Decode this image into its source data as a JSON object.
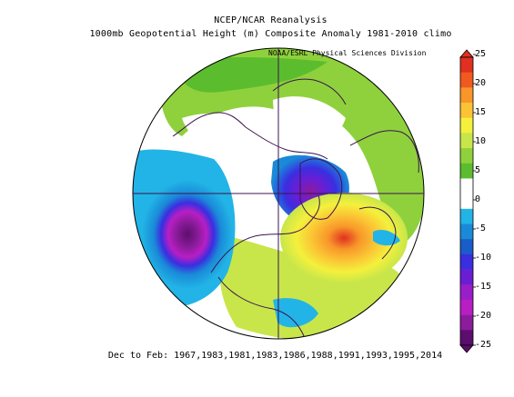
{
  "titles": {
    "line1": "NCEP/NCAR Reanalysis",
    "line2": "1000mb Geopotential Height (m) Composite Anomaly 1981-2010 climo",
    "credit": "NOAA/ESRL Physical Sciences Division"
  },
  "footer": "Dec to Feb: 1967,1983,1981,1983,1986,1988,1991,1993,1995,2014",
  "colorbar": {
    "ticks": [
      "25",
      "20",
      "15",
      "10",
      "5",
      "0",
      "-5",
      "-10",
      "-15",
      "-20",
      "-25"
    ],
    "colors": [
      "#e03020",
      "#f05a1e",
      "#f8962a",
      "#fbc434",
      "#f4f03c",
      "#c8e64a",
      "#8fd13c",
      "#5bbd2e",
      "#ffffff",
      "#ffffff",
      "#22b4e6",
      "#1a8ad8",
      "#1a5cc8",
      "#3a2ee0",
      "#6a1ed4",
      "#9a1ec8",
      "#b81ec4",
      "#8c1c9c",
      "#5c0e6c"
    ]
  },
  "anomaly_features": [
    {
      "sign": "negative",
      "region": "North Pacific / Aleutian Low",
      "peak_value": -25
    },
    {
      "sign": "negative",
      "region": "Greenland / Baffin Bay",
      "peak_value": -20
    },
    {
      "sign": "positive",
      "region": "North Atlantic",
      "peak_value": 20
    },
    {
      "sign": "positive",
      "region": "Europe / Eurasia",
      "peak_value": 5
    }
  ]
}
